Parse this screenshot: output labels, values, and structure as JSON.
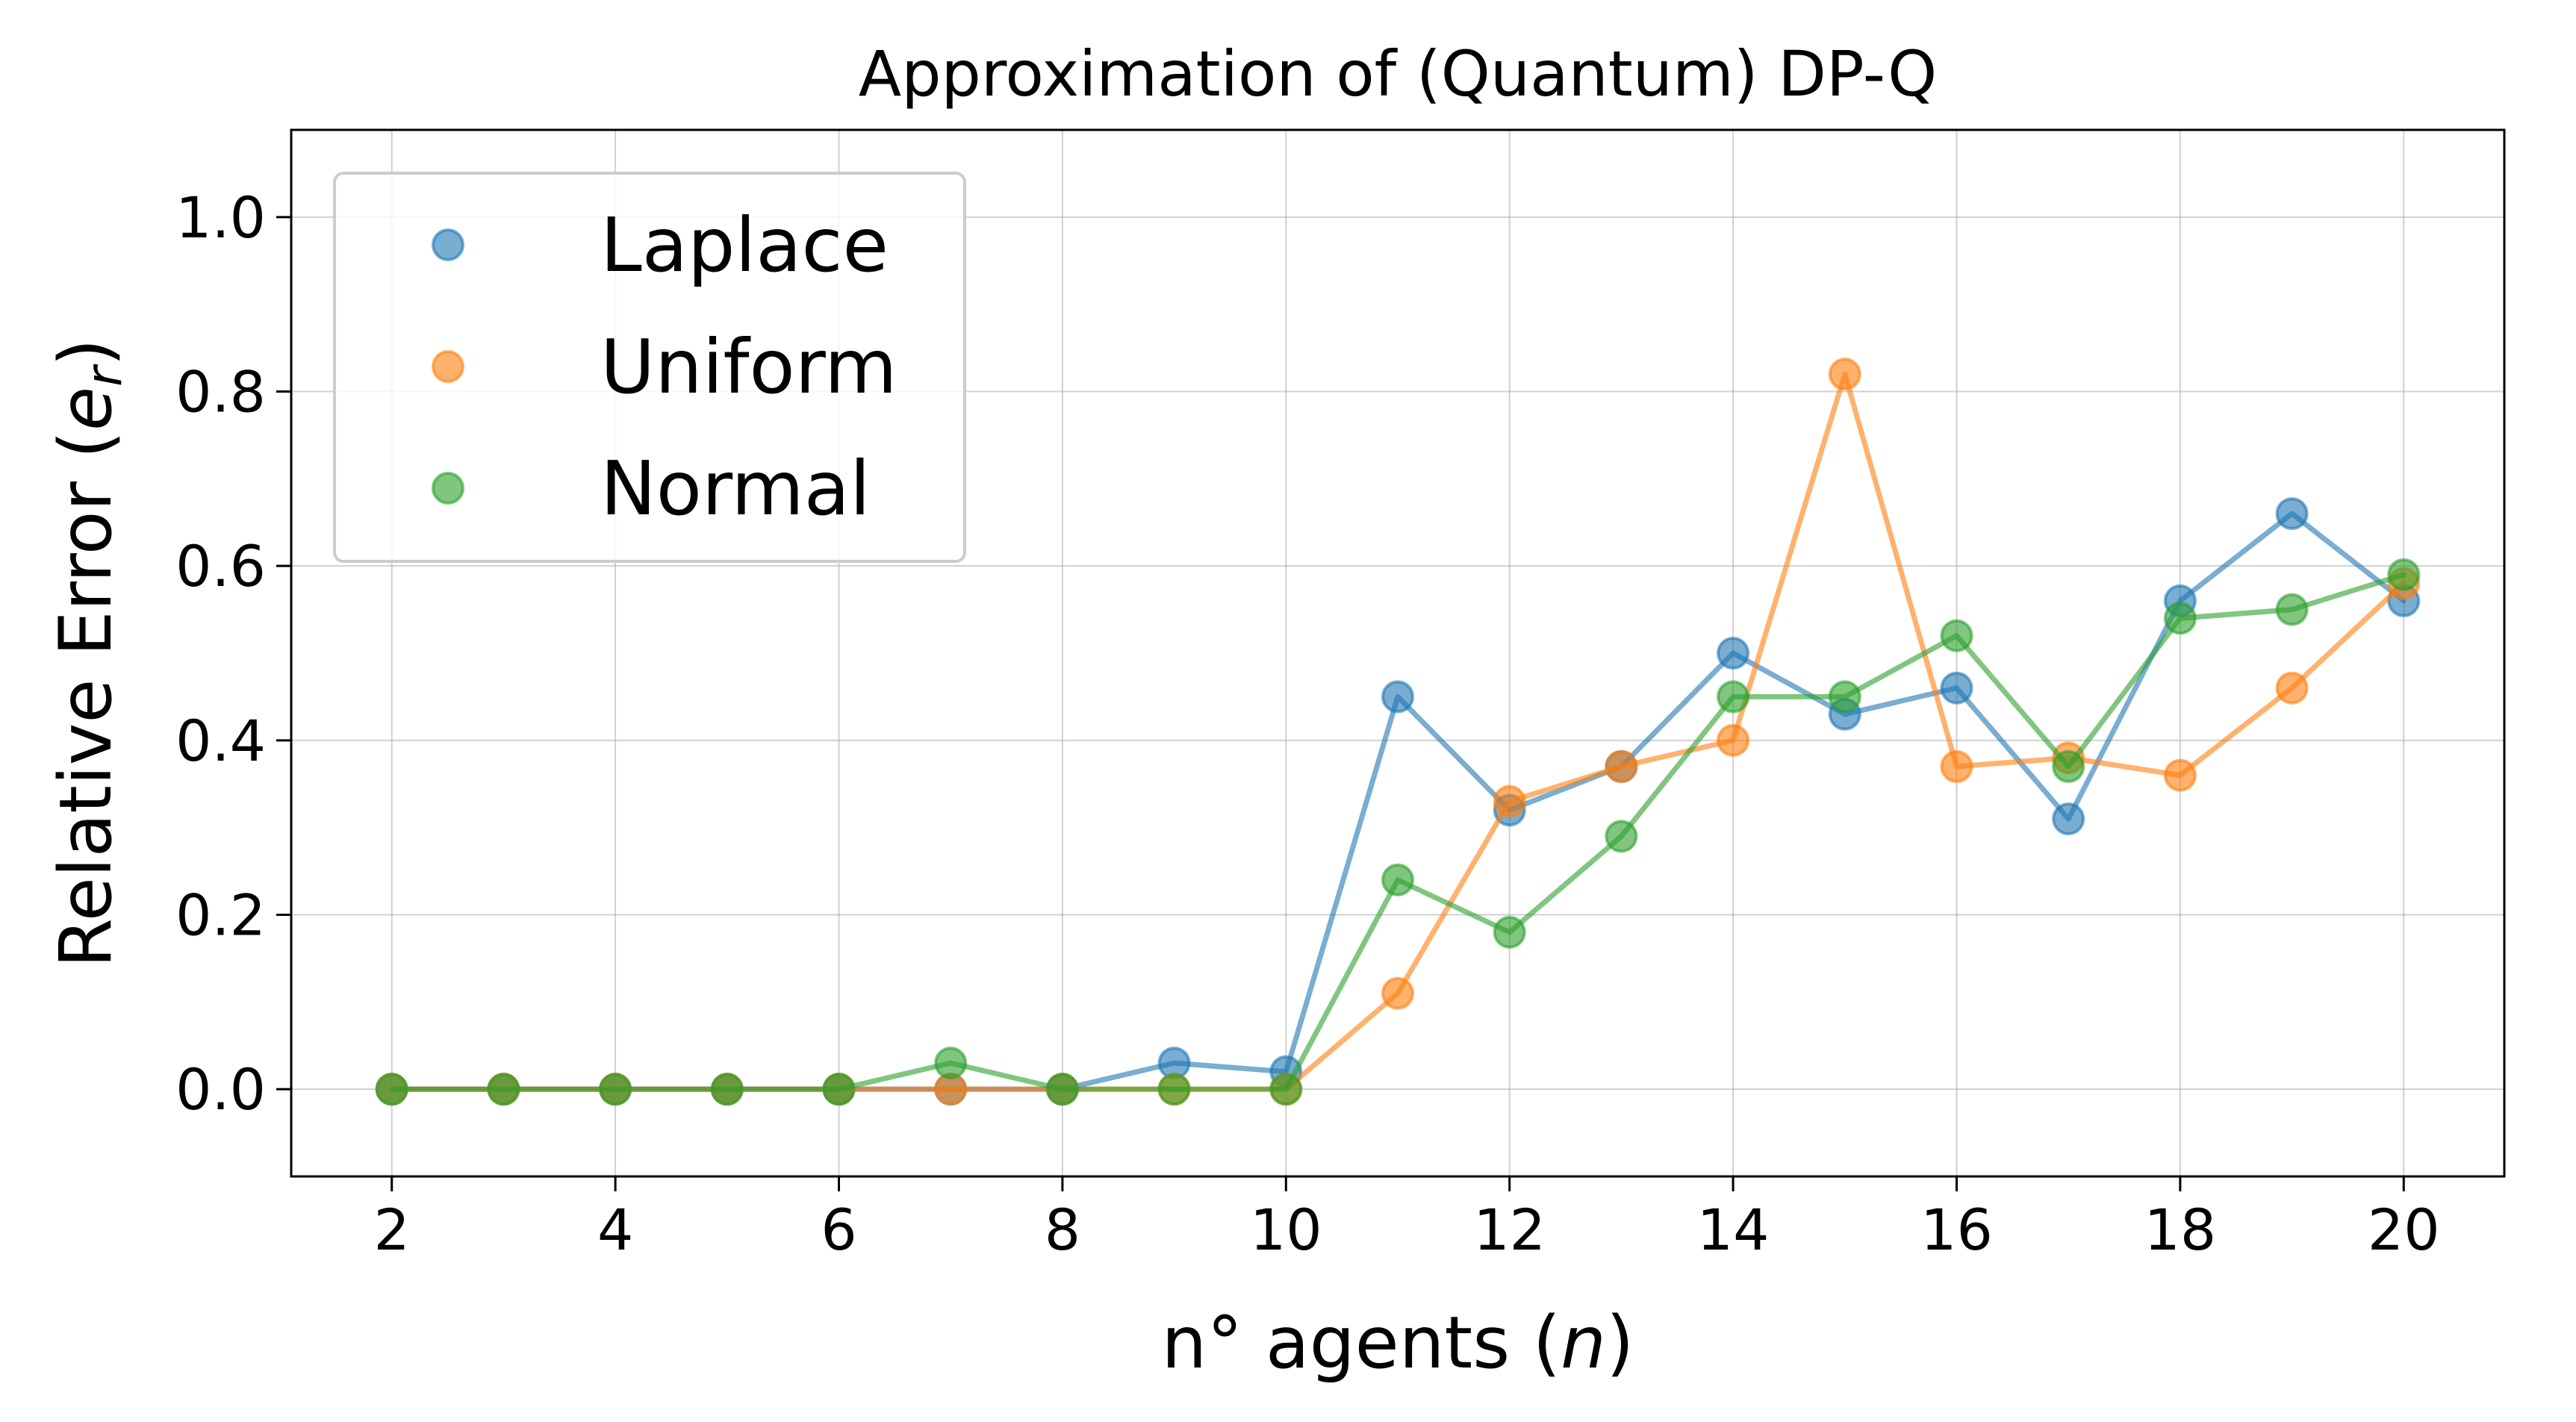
{
  "chart_data": {
    "type": "line",
    "title": "Approximation of (Quantum) DP-Q",
    "xlabel": {
      "text": "n° agents (",
      "var": "n",
      "close": ")"
    },
    "ylabel": {
      "text": "Relative Error (",
      "var": "e",
      "sub": "r",
      "close": ")"
    },
    "x": [
      2,
      3,
      4,
      5,
      6,
      7,
      8,
      9,
      10,
      11,
      12,
      13,
      14,
      15,
      16,
      17,
      18,
      19,
      20
    ],
    "xlim": [
      1.1,
      20.9
    ],
    "ylim": [
      -0.1,
      1.1
    ],
    "xticks": [
      "2",
      "4",
      "6",
      "8",
      "10",
      "12",
      "14",
      "16",
      "18",
      "20"
    ],
    "yticks": [
      "0.0",
      "0.2",
      "0.4",
      "0.6",
      "0.8",
      "1.0"
    ],
    "grid": true,
    "legend_position": "top-left",
    "series": [
      {
        "name": "Laplace",
        "color": "#1f77b4",
        "values": [
          0,
          0,
          0,
          0,
          0,
          0,
          0,
          0.03,
          0.02,
          0.45,
          0.32,
          0.37,
          0.5,
          0.43,
          0.46,
          0.31,
          0.56,
          0.66,
          0.56
        ]
      },
      {
        "name": "Uniform",
        "color": "#ff7f0e",
        "values": [
          0,
          0,
          0,
          0,
          0,
          0,
          0,
          0,
          0,
          0.11,
          0.33,
          0.37,
          0.4,
          0.82,
          0.37,
          0.38,
          0.36,
          0.46,
          0.58
        ]
      },
      {
        "name": "Normal",
        "color": "#2ca02c",
        "values": [
          0,
          0,
          0,
          0,
          0,
          0.03,
          0,
          0,
          0,
          0.24,
          0.18,
          0.29,
          0.45,
          0.45,
          0.52,
          0.37,
          0.54,
          0.55,
          0.59
        ]
      }
    ]
  }
}
